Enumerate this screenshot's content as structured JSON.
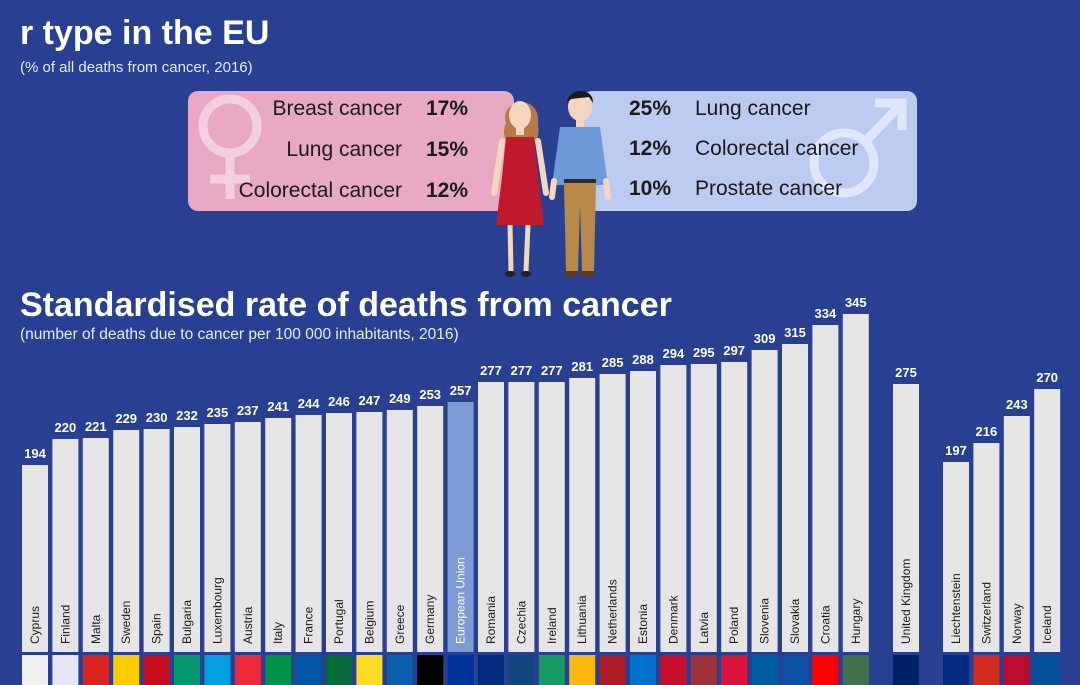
{
  "top_section": {
    "title": "r type in the EU",
    "subtitle": "(% of all deaths from cancer, 2016)",
    "female": [
      {
        "label": "Breast cancer",
        "pct": "17%"
      },
      {
        "label": "Lung cancer",
        "pct": "15%"
      },
      {
        "label": "Colorectal cancer",
        "pct": "12%"
      }
    ],
    "male": [
      {
        "label": "Lung cancer",
        "pct": "25%"
      },
      {
        "label": "Colorectal cancer",
        "pct": "12%"
      },
      {
        "label": "Prostate cancer",
        "pct": "10%"
      }
    ]
  },
  "chart_data": {
    "type": "bar",
    "title": "Standardised rate of deaths from cancer",
    "subtitle": "(number of deaths due to cancer per 100 000 inhabitants, 2016)",
    "categories": [
      "Cyprus",
      "Finland",
      "Malta",
      "Sweden",
      "Spain",
      "Bulgaria",
      "Luxembourg",
      "Austria",
      "Italy",
      "France",
      "Portugal",
      "Belgium",
      "Greece",
      "Germany",
      "European Union",
      "Romania",
      "Czechia",
      "Ireland",
      "Lithuania",
      "Netherlands",
      "Estonia",
      "Denmark",
      "Latvia",
      "Poland",
      "Slovenia",
      "Slovakia",
      "Croatia",
      "Hungary",
      "United Kingdom",
      "Liechtenstein",
      "Switzerland",
      "Norway",
      "Iceland"
    ],
    "values": [
      194,
      220,
      221,
      229,
      230,
      232,
      235,
      237,
      241,
      244,
      246,
      247,
      249,
      253,
      257,
      277,
      277,
      277,
      281,
      285,
      288,
      294,
      295,
      297,
      309,
      315,
      334,
      345,
      275,
      197,
      216,
      243,
      270
    ],
    "highlight": "European Union",
    "colors": {
      "bar": "#e6e6e6",
      "highlight": "#7f9bd6",
      "background": "#283f92"
    }
  }
}
